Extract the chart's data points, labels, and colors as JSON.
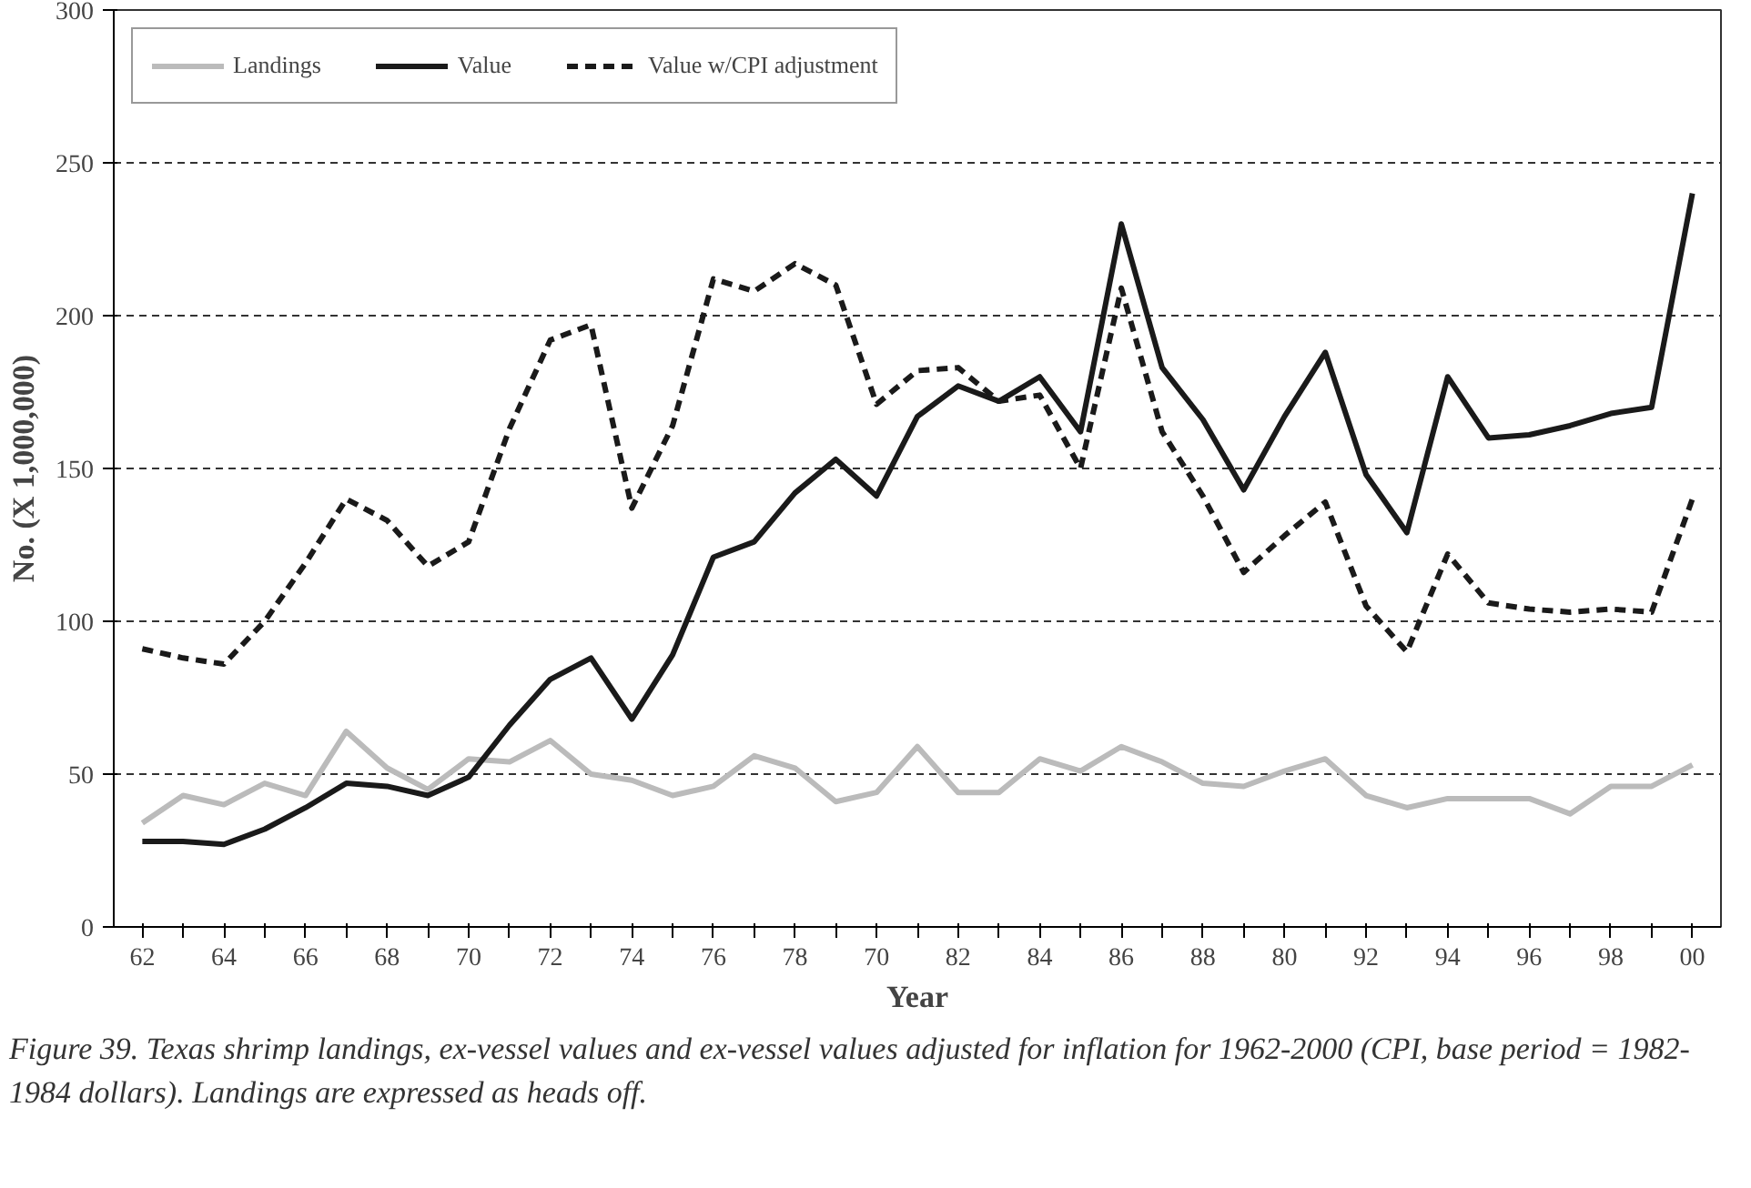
{
  "chart_data": {
    "type": "line",
    "xlabel": "Year",
    "ylabel": "No. (X 1,000,000)",
    "categories": [
      "62",
      null,
      "64",
      null,
      "66",
      null,
      "68",
      null,
      "70",
      null,
      "72",
      null,
      "74",
      null,
      "76",
      null,
      "78",
      null,
      "70",
      null,
      "82",
      null,
      "84",
      null,
      "86",
      null,
      "88",
      null,
      "80",
      null,
      "92",
      null,
      "94",
      null,
      "96",
      null,
      "98",
      null,
      "00"
    ],
    "series": [
      {
        "name": "Landings",
        "color": "#bbbbbb",
        "line_style": "solid",
        "values": [
          34,
          43,
          40,
          47,
          43,
          64,
          52,
          45,
          55,
          54,
          61,
          50,
          48,
          43,
          46,
          56,
          52,
          41,
          44,
          59,
          44,
          44,
          55,
          51,
          59,
          54,
          47,
          46,
          51,
          55,
          43,
          39,
          42,
          42,
          42,
          37,
          46,
          46,
          53
        ]
      },
      {
        "name": "Value",
        "color": "#1a1a1a",
        "line_style": "solid",
        "values": [
          28,
          28,
          27,
          32,
          39,
          47,
          46,
          43,
          49,
          66,
          81,
          88,
          68,
          89,
          121,
          126,
          142,
          153,
          141,
          167,
          177,
          172,
          180,
          162,
          230,
          183,
          166,
          143,
          167,
          188,
          148,
          129,
          180,
          160,
          161,
          164,
          168,
          170,
          240
        ]
      },
      {
        "name": "Value w/CPI adjustment",
        "color": "#1a1a1a",
        "line_style": "dashed",
        "values": [
          91,
          88,
          86,
          100,
          119,
          140,
          133,
          118,
          126,
          163,
          192,
          197,
          137,
          164,
          212,
          208,
          217,
          210,
          171,
          182,
          183,
          172,
          174,
          150,
          209,
          162,
          141,
          116,
          128,
          139,
          105,
          90,
          122,
          106,
          104,
          103,
          104,
          103,
          140
        ]
      }
    ],
    "ylim": [
      0,
      300
    ],
    "yticks": [
      0,
      50,
      100,
      150,
      200,
      250,
      300
    ],
    "grid": "y",
    "legend": "top left",
    "marker": "none",
    "annotations": [
      "Figure 39.  Texas shrimp landings, ex-vessel values and ex-vessel values adjusted for inflation for 1962-2000 (CPI, base period = 1982-1984 dollars). Landings are expressed as heads off."
    ]
  }
}
